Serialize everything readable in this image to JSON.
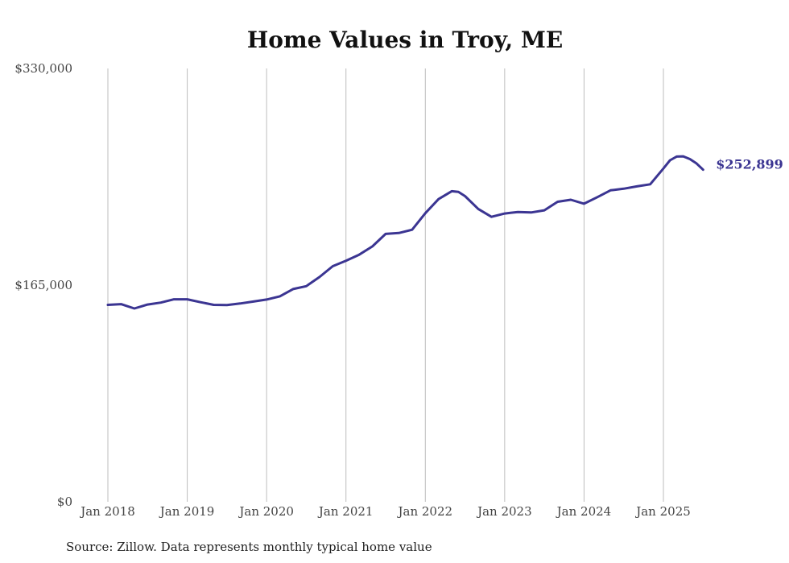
{
  "chart_data": {
    "type": "line",
    "title": "Home Values in Troy, ME",
    "source": "Source: Zillow. Data represents monthly typical home value",
    "ylim": [
      0,
      330000
    ],
    "y_ticks": [
      {
        "value": 0,
        "label": "$0"
      },
      {
        "value": 165000,
        "label": "$165,000"
      },
      {
        "value": 330000,
        "label": "$330,000"
      }
    ],
    "x_ticks": [
      {
        "date": "2018-01",
        "label": "Jan 2018"
      },
      {
        "date": "2019-01",
        "label": "Jan 2019"
      },
      {
        "date": "2020-01",
        "label": "Jan 2020"
      },
      {
        "date": "2021-01",
        "label": "Jan 2021"
      },
      {
        "date": "2022-01",
        "label": "Jan 2022"
      },
      {
        "date": "2023-01",
        "label": "Jan 2023"
      },
      {
        "date": "2024-01",
        "label": "Jan 2024"
      },
      {
        "date": "2025-01",
        "label": "Jan 2025"
      }
    ],
    "grid": {
      "vertical": true,
      "horizontal": false
    },
    "line_color": "#3b3592",
    "end_label": "$252,899",
    "series": [
      {
        "x": [
          "2018-01",
          "2018-03",
          "2018-05",
          "2018-07",
          "2018-09",
          "2018-11",
          "2019-01",
          "2019-03",
          "2019-05",
          "2019-07",
          "2019-09",
          "2019-11",
          "2020-01",
          "2020-03",
          "2020-05",
          "2020-07",
          "2020-09",
          "2020-11",
          "2021-01",
          "2021-03",
          "2021-05",
          "2021-07",
          "2021-09",
          "2021-11",
          "2022-01",
          "2022-03",
          "2022-05",
          "2022-06",
          "2022-07",
          "2022-09",
          "2022-11",
          "2023-01",
          "2023-03",
          "2023-05",
          "2023-07",
          "2023-09",
          "2023-11",
          "2024-01",
          "2024-03",
          "2024-05",
          "2024-07",
          "2024-09",
          "2024-11",
          "2025-01",
          "2025-02",
          "2025-03",
          "2025-04",
          "2025-05",
          "2025-06",
          "2025-07"
        ],
        "values": [
          150000,
          150500,
          147200,
          150200,
          151700,
          154200,
          154200,
          152000,
          150000,
          149800,
          151000,
          152500,
          154000,
          156500,
          162000,
          164200,
          171200,
          179400,
          183600,
          188200,
          194500,
          204000,
          204700,
          207200,
          219800,
          230500,
          236500,
          236000,
          232800,
          223000,
          217000,
          219500,
          220700,
          220300,
          222000,
          228500,
          230000,
          227000,
          232000,
          237200,
          238400,
          240200,
          241800,
          253800,
          260100,
          262900,
          263100,
          261000,
          257700,
          252899
        ]
      }
    ]
  }
}
